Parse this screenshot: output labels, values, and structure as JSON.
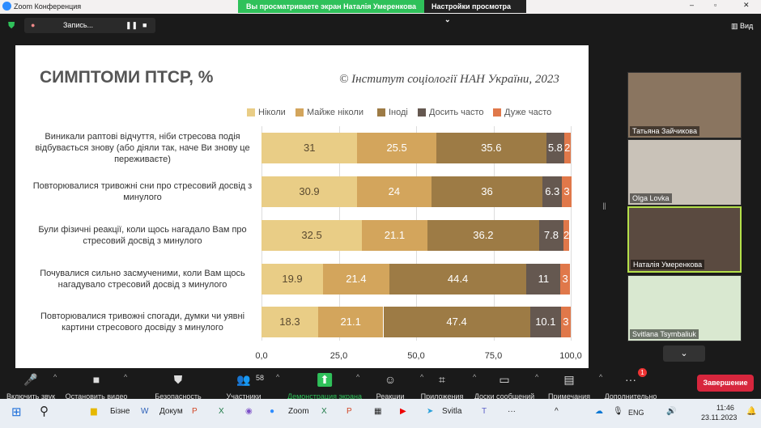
{
  "window": {
    "title": "Zoom Конференция",
    "viewing_banner": "Вы просматриваете экран Наталія Умеренкова",
    "view_settings": "Настройки просмотра",
    "recording": "Запись...",
    "view": "Вид"
  },
  "slide": {
    "title": "СИМПТОМИ ПТСР, %",
    "source": "© Інститут соціології НАН України, 2023"
  },
  "chart_data": {
    "type": "bar",
    "orientation": "horizontal",
    "stacked": true,
    "title": "СИМПТОМИ ПТСР, %",
    "xlim": [
      0,
      100
    ],
    "xticks": [
      "0,0",
      "25,0",
      "50,0",
      "75,0",
      "100,0"
    ],
    "grid": true,
    "legend_position": "top-right",
    "categories": [
      "Виникали раптові відчуття, ніби стресова подія відбувається знову (або діяли так, наче Ви знову це переживаєте)",
      "Повторювалися тривожні сни про стресовий досвід з минулого",
      "Були фізичні реакції, коли щось нагадало Вам про стресовий досвід з минулого",
      "Почувалися сильно засмученими, коли Вам щось нагадувало стресовий досвід з минулого",
      "Повторювалися тривожні спогади, думки чи уявні картини стресового досвіду з минулого"
    ],
    "series": [
      {
        "name": "Ніколи",
        "color": "#e9cd86",
        "values": [
          31,
          30.9,
          32.5,
          19.9,
          18.3
        ]
      },
      {
        "name": "Майже ніколи",
        "color": "#d3a55c",
        "values": [
          25.5,
          24,
          21.1,
          21.4,
          21.1
        ]
      },
      {
        "name": "Іноді",
        "color": "#9d7b45",
        "values": [
          35.6,
          36,
          36.2,
          44.4,
          47.4
        ]
      },
      {
        "name": "Досить часто",
        "color": "#655850",
        "values": [
          5.8,
          6.3,
          7.8,
          11,
          10.1
        ]
      },
      {
        "name": "Дуже часто",
        "color": "#e0784a",
        "values": [
          2,
          3,
          2,
          3,
          3
        ]
      }
    ]
  },
  "participants": [
    {
      "name": "Татьяна Зайчикова"
    },
    {
      "name": "Olga Lovka"
    },
    {
      "name": "Наталія Умеренкова"
    },
    {
      "name": "Svitlana Tsymbaliuk"
    }
  ],
  "toolbar": {
    "items": [
      "Включить звук",
      "Остановить видео",
      "Безопасность",
      "Участники",
      "Демонстрация экрана",
      "Реакции",
      "Приложения",
      "Доски сообщений",
      "Примечания",
      "Дополнительно"
    ],
    "participants_count": "58",
    "more_badge": "1",
    "end": "Завершение"
  },
  "taskbar": {
    "apps": [
      "Бізне",
      "Докум",
      "Zoom",
      "Svitla"
    ],
    "lang": "ENG",
    "time": "11:46",
    "date": "23.11.2023"
  }
}
